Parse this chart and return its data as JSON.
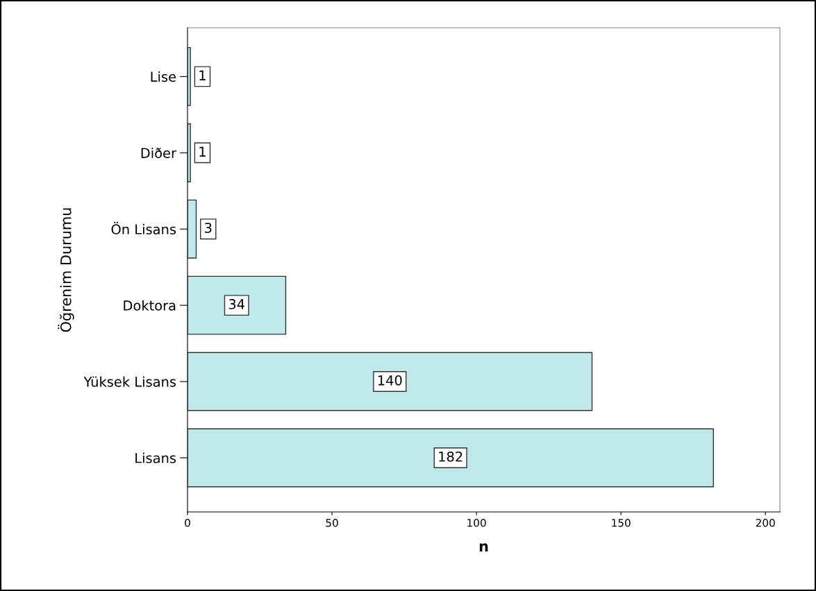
{
  "chart_data": {
    "type": "bar",
    "orientation": "horizontal",
    "xlabel": "n",
    "ylabel": "Öğrenim Durumu",
    "categories": [
      "Lise",
      "Diðer",
      "Ön Lisans",
      "Doktora",
      "Yüksek Lisans",
      "Lisans"
    ],
    "values": [
      1,
      1,
      3,
      34,
      140,
      182
    ],
    "color": "#c0e8e8",
    "xlim": [
      0,
      205
    ],
    "xticks": [
      0,
      50,
      100,
      150,
      200
    ],
    "grid": false,
    "data_labels": true
  }
}
